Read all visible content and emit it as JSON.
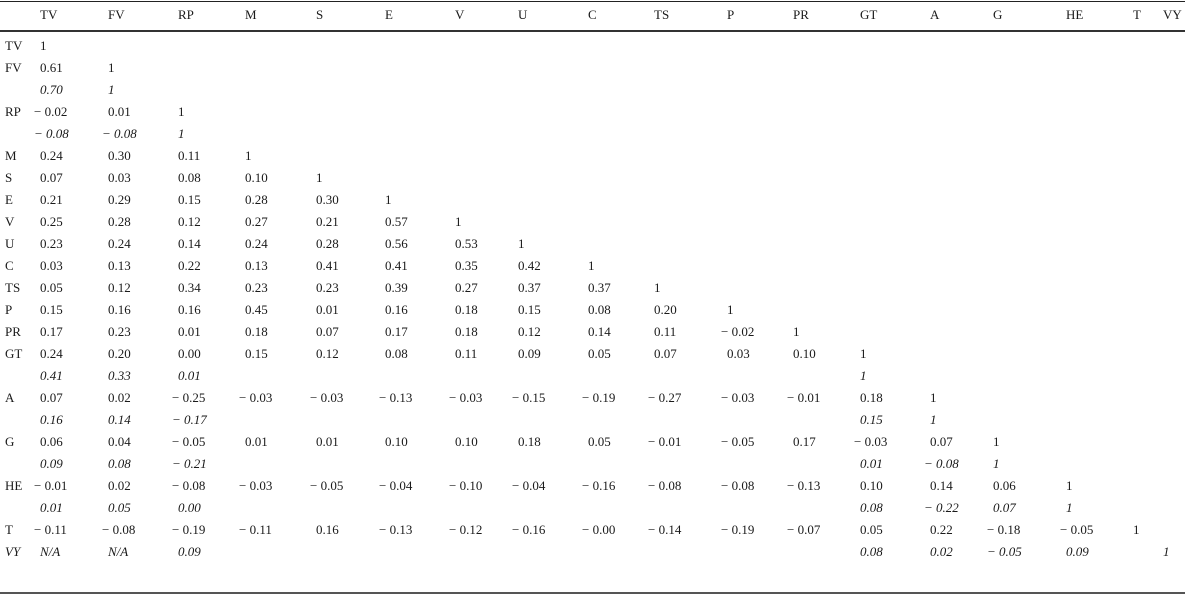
{
  "table": {
    "columns": [
      "TV",
      "FV",
      "RP",
      "M",
      "S",
      "E",
      "V",
      "U",
      "C",
      "TS",
      "P",
      "PR",
      "GT",
      "A",
      "G",
      "HE",
      "T",
      "VY"
    ],
    "rows": [
      {
        "label": "TV",
        "italic": false,
        "cells": [
          "1"
        ]
      },
      {
        "label": "FV",
        "italic": false,
        "cells": [
          "0.61",
          "1"
        ]
      },
      {
        "label": "",
        "italic": true,
        "cells": [
          "0.70",
          "1"
        ]
      },
      {
        "label": "RP",
        "italic": false,
        "cells": [
          "− 0.02",
          "0.01",
          "1"
        ]
      },
      {
        "label": "",
        "italic": true,
        "cells": [
          "− 0.08",
          "− 0.08",
          "1"
        ]
      },
      {
        "label": "M",
        "italic": false,
        "cells": [
          "0.24",
          "0.30",
          "0.11",
          "1"
        ]
      },
      {
        "label": "S",
        "italic": false,
        "cells": [
          "0.07",
          "0.03",
          "0.08",
          "0.10",
          "1"
        ]
      },
      {
        "label": "E",
        "italic": false,
        "cells": [
          "0.21",
          "0.29",
          "0.15",
          "0.28",
          "0.30",
          "1"
        ]
      },
      {
        "label": "V",
        "italic": false,
        "cells": [
          "0.25",
          "0.28",
          "0.12",
          "0.27",
          "0.21",
          "0.57",
          "1"
        ]
      },
      {
        "label": "U",
        "italic": false,
        "cells": [
          "0.23",
          "0.24",
          "0.14",
          "0.24",
          "0.28",
          "0.56",
          "0.53",
          "1"
        ]
      },
      {
        "label": "C",
        "italic": false,
        "cells": [
          "0.03",
          "0.13",
          "0.22",
          "0.13",
          "0.41",
          "0.41",
          "0.35",
          "0.42",
          "1"
        ]
      },
      {
        "label": "TS",
        "italic": false,
        "cells": [
          "0.05",
          "0.12",
          "0.34",
          "0.23",
          "0.23",
          "0.39",
          "0.27",
          "0.37",
          "0.37",
          "1"
        ]
      },
      {
        "label": "P",
        "italic": false,
        "cells": [
          "0.15",
          "0.16",
          "0.16",
          "0.45",
          "0.01",
          "0.16",
          "0.18",
          "0.15",
          "0.08",
          "0.20",
          "1"
        ]
      },
      {
        "label": "PR",
        "italic": false,
        "cells": [
          "0.17",
          "0.23",
          "0.01",
          "0.18",
          "0.07",
          "0.17",
          "0.18",
          "0.12",
          "0.14",
          "0.11",
          "− 0.02",
          "1"
        ]
      },
      {
        "label": "GT",
        "italic": false,
        "cells": [
          "0.24",
          "0.20",
          "0.00",
          "0.15",
          "0.12",
          "0.08",
          "0.11",
          "0.09",
          "0.05",
          "0.07",
          "0.03",
          "0.10",
          "1"
        ]
      },
      {
        "label": "",
        "italic": true,
        "cells": [
          "0.41",
          "0.33",
          "0.01",
          "",
          "",
          "",
          "",
          "",
          "",
          "",
          "",
          "",
          "1"
        ]
      },
      {
        "label": "A",
        "italic": false,
        "cells": [
          "0.07",
          "0.02",
          "− 0.25",
          "− 0.03",
          "− 0.03",
          "− 0.13",
          "− 0.03",
          "− 0.15",
          "− 0.19",
          "− 0.27",
          "− 0.03",
          "− 0.01",
          "0.18",
          "1"
        ]
      },
      {
        "label": "",
        "italic": true,
        "cells": [
          "0.16",
          "0.14",
          "− 0.17",
          "",
          "",
          "",
          "",
          "",
          "",
          "",
          "",
          "",
          "0.15",
          "1"
        ]
      },
      {
        "label": "G",
        "italic": false,
        "cells": [
          "0.06",
          "0.04",
          "− 0.05",
          "0.01",
          "0.01",
          "0.10",
          "0.10",
          "0.18",
          "0.05",
          "− 0.01",
          "− 0.05",
          "0.17",
          "− 0.03",
          "0.07",
          "1"
        ]
      },
      {
        "label": "",
        "italic": true,
        "cells": [
          "0.09",
          "0.08",
          "− 0.21",
          "",
          "",
          "",
          "",
          "",
          "",
          "",
          "",
          "",
          "0.01",
          "− 0.08",
          "1"
        ]
      },
      {
        "label": "HE",
        "italic": false,
        "cells": [
          "− 0.01",
          "0.02",
          "− 0.08",
          "− 0.03",
          "− 0.05",
          "− 0.04",
          "− 0.10",
          "− 0.04",
          "− 0.16",
          "− 0.08",
          "− 0.08",
          "− 0.13",
          "0.10",
          "0.14",
          "0.06",
          "1"
        ]
      },
      {
        "label": "",
        "italic": true,
        "cells": [
          "0.01",
          "0.05",
          "0.00",
          "",
          "",
          "",
          "",
          "",
          "",
          "",
          "",
          "",
          "0.08",
          "− 0.22",
          "0.07",
          "1"
        ]
      },
      {
        "label": "T",
        "italic": false,
        "cells": [
          "− 0.11",
          "− 0.08",
          "− 0.19",
          "− 0.11",
          "0.16",
          "− 0.13",
          "− 0.12",
          "− 0.16",
          "− 0.00",
          "− 0.14",
          "− 0.19",
          "− 0.07",
          "0.05",
          "0.22",
          "− 0.18",
          "− 0.05",
          "1"
        ]
      },
      {
        "label": "VY",
        "italic": true,
        "cells": [
          "N/A",
          "N/A",
          "0.09",
          "",
          "",
          "",
          "",
          "",
          "",
          "",
          "",
          "",
          "0.08",
          "0.02",
          "− 0.05",
          "0.09",
          "",
          "1"
        ]
      }
    ]
  }
}
